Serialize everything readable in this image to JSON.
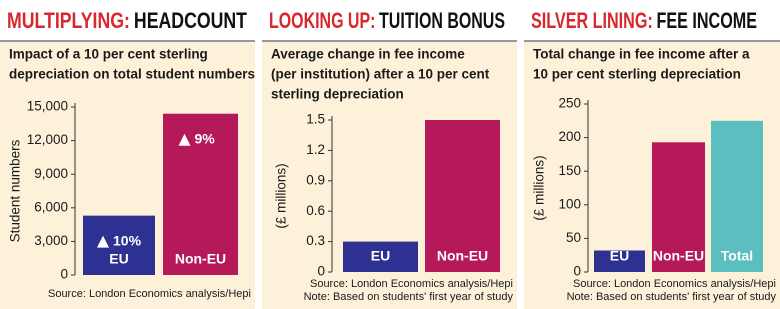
{
  "chart_data": [
    {
      "type": "bar",
      "title": [
        "MULTIPLYING:",
        "HEADCOUNT"
      ],
      "subtitle": [
        "Impact of a 10 per cent sterling",
        "depreciation on total student numbers"
      ],
      "ylabel": "Student numbers",
      "categories": [
        "EU",
        "Non-EU"
      ],
      "values": [
        5300,
        14400
      ],
      "colors": [
        "#2e3192",
        "#b5195a"
      ],
      "bar_annotations": [
        "10%",
        "9%"
      ],
      "ylim": [
        0,
        15000
      ],
      "yticks": [
        0,
        {
          "value": 3000,
          "label": "3,000"
        },
        {
          "value": 6000,
          "label": "6,000"
        },
        {
          "value": 9000,
          "label": "9,000"
        },
        {
          "value": 12000,
          "label": "12,000"
        },
        {
          "value": 15000,
          "label": "15,000"
        }
      ],
      "notes": [
        "Source: London Economics analysis/Hepi"
      ]
    },
    {
      "type": "bar",
      "title": [
        "LOOKING UP:",
        "TUITION BONUS"
      ],
      "subtitle": [
        "Average change in fee income",
        "(per institution) after a 10 per cent",
        "sterling depreciation"
      ],
      "ylabel": "(£ millions)",
      "categories": [
        "EU",
        "Non-EU"
      ],
      "values": [
        0.3,
        1.5
      ],
      "colors": [
        "#2e3192",
        "#b5195a"
      ],
      "ylim": [
        0,
        1.5
      ],
      "yticks": [
        0,
        0.3,
        0.6,
        0.9,
        1.2,
        1.5
      ],
      "notes": [
        "Source: London Economics analysis/Hepi",
        "Note: Based on students' first year of study"
      ]
    },
    {
      "type": "bar",
      "title": [
        "SILVER LINING:",
        "FEE INCOME"
      ],
      "subtitle": [
        "Total change in fee income after a",
        "10 per cent sterling depreciation"
      ],
      "ylabel": "(£ millions)",
      "categories": [
        "EU",
        "Non-EU",
        "Total"
      ],
      "values": [
        32,
        193,
        225
      ],
      "colors": [
        "#2e3192",
        "#b5195a",
        "#5bbfbf"
      ],
      "ylim": [
        0,
        250
      ],
      "yticks": [
        0,
        50,
        100,
        150,
        200,
        250
      ],
      "notes": [
        "Source: London Economics analysis/Hepi",
        "Note: Based on students' first year of study"
      ]
    }
  ]
}
